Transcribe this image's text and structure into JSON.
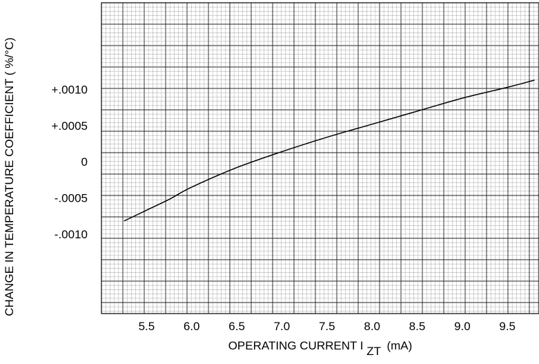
{
  "chart_data": {
    "type": "line",
    "title": "",
    "xlabel": "OPERATING CURRENT I",
    "xlabel_subscript": "ZT",
    "xlabel_unit": "(mA)",
    "ylabel": "CHANGE IN TEMPERATURE COEFFICIENT ( %/°C)",
    "xlim": [
      5.0,
      9.85
    ],
    "ylim": [
      -0.0021,
      0.0022
    ],
    "x_ticks": [
      5.5,
      6.0,
      6.5,
      7.0,
      7.5,
      8.0,
      8.5,
      9.0,
      9.5
    ],
    "x_tick_labels": [
      "5.5",
      "6.0",
      "6.5",
      "7.0",
      "7.5",
      "8.0",
      "8.5",
      "9.0",
      "9.5"
    ],
    "y_ticks": [
      0.001,
      0.0005,
      0,
      -0.0005,
      -0.001
    ],
    "y_tick_labels": [
      "+.0010",
      "+.0005",
      "0",
      "-.0005",
      "-.0010"
    ],
    "grid": true,
    "series": [
      {
        "x": [
          5.25,
          5.5,
          5.75,
          6.0,
          6.5,
          7.0,
          7.5,
          8.0,
          8.5,
          9.0,
          9.5,
          9.8
        ],
        "y": [
          -0.00082,
          -0.00067,
          -0.00052,
          -0.00035,
          -8e-05,
          0.00014,
          0.00034,
          0.00052,
          0.0007,
          0.00088,
          0.00103,
          0.00113
        ]
      }
    ]
  }
}
